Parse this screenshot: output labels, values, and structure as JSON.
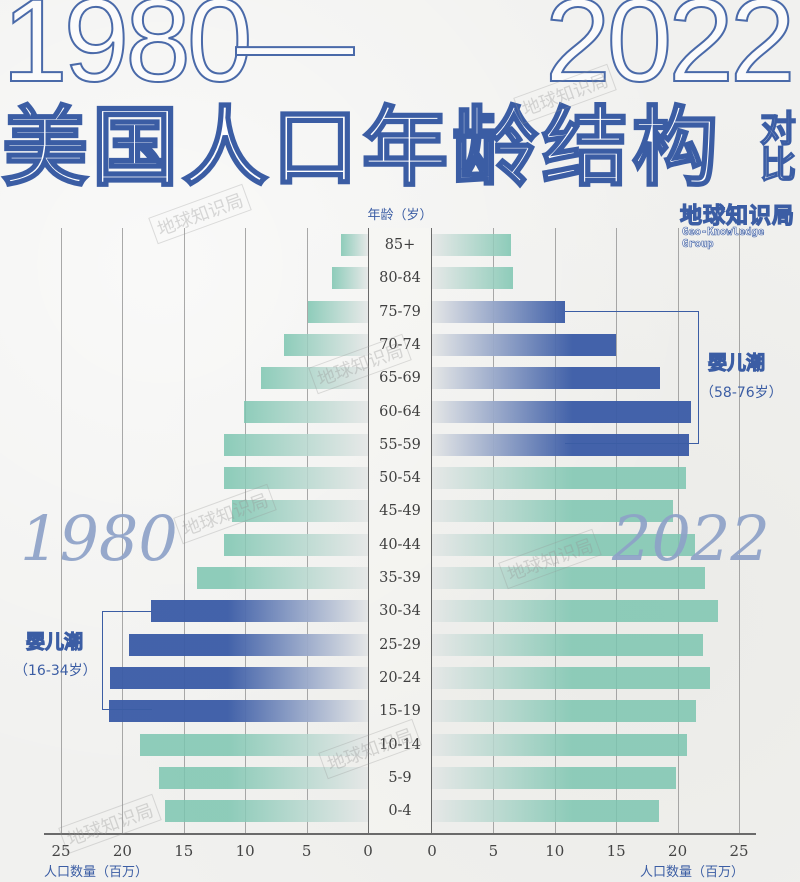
{
  "header": {
    "year_start": "1980",
    "dash": "—",
    "year_end": "2022",
    "title": "美国人口年龄结构",
    "title_suffix": "对比",
    "brand_cn": "地球知识局",
    "brand_en": "Geo-Knowledge Group"
  },
  "watermark_text": "地球知识局",
  "colors": {
    "teal": "#7cc5b0",
    "blue": "#3a5ba6",
    "fade": "#e4e6e6",
    "accent": "#3b5da4",
    "big_year": "#8ea2c8"
  },
  "chart_data": {
    "type": "bar",
    "subtype": "population-pyramid",
    "title": "1980 — 2022 美国人口年龄结构对比",
    "categories": [
      "85+",
      "80-84",
      "75-79",
      "70-74",
      "65-69",
      "60-64",
      "55-59",
      "50-54",
      "45-49",
      "40-44",
      "35-39",
      "30-34",
      "25-29",
      "20-24",
      "15-19",
      "10-14",
      "5-9",
      "0-4"
    ],
    "category_header": "年龄（岁）",
    "series": [
      {
        "name": "1980",
        "side": "left",
        "values": [
          2.2,
          2.9,
          4.9,
          6.8,
          8.7,
          10.1,
          11.7,
          11.7,
          11.1,
          11.7,
          13.9,
          17.7,
          19.5,
          21.0,
          21.1,
          18.6,
          17.0,
          16.5
        ],
        "highlight": [
          "30-34",
          "25-29",
          "20-24",
          "15-19"
        ]
      },
      {
        "name": "2022",
        "side": "right",
        "values": [
          6.4,
          6.6,
          10.8,
          15.0,
          18.6,
          21.1,
          20.9,
          20.7,
          19.6,
          21.4,
          22.2,
          23.3,
          22.1,
          22.6,
          21.5,
          20.8,
          19.9,
          18.5
        ],
        "highlight": [
          "75-79",
          "70-74",
          "65-69",
          "60-64",
          "55-59"
        ]
      }
    ],
    "xlabel": "人口数量（百万）",
    "xticks": [
      25,
      20,
      15,
      10,
      5,
      0
    ],
    "xlim": [
      0,
      25
    ],
    "grid": true,
    "annotations": [
      {
        "side": "left",
        "label": "1980",
        "boom_title": "婴儿潮",
        "boom_range": "（16-34岁）"
      },
      {
        "side": "right",
        "label": "2022",
        "boom_title": "婴儿潮",
        "boom_range": "（58-76岁）"
      }
    ]
  }
}
